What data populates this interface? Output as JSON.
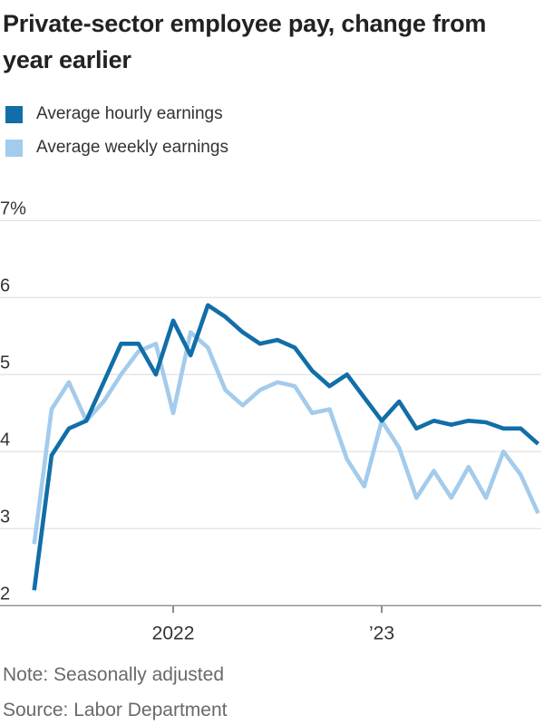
{
  "title": {
    "line1": "Private-sector employee pay, change from",
    "line2": "year earlier"
  },
  "legend": [
    {
      "label": "Average hourly earnings",
      "color": "#116ea8"
    },
    {
      "label": "Average weekly earnings",
      "color": "#a3cbec"
    }
  ],
  "note": "Note: Seasonally adjusted",
  "source": "Source: Labor Department",
  "chart_data": {
    "type": "line",
    "title": "Private-sector employee pay, change from year earlier",
    "x": [
      "May 2021",
      "Jun 2021",
      "Jul 2021",
      "Aug 2021",
      "Sep 2021",
      "Oct 2021",
      "Nov 2021",
      "Dec 2021",
      "Jan 2022",
      "Feb 2022",
      "Mar 2022",
      "Apr 2022",
      "May 2022",
      "Jun 2022",
      "Jul 2022",
      "Aug 2022",
      "Sep 2022",
      "Oct 2022",
      "Nov 2022",
      "Dec 2022",
      "Jan 2023",
      "Feb 2023",
      "Mar 2023",
      "Apr 2023",
      "May 2023",
      "Jun 2023",
      "Jul 2023",
      "Aug 2023",
      "Sep 2023",
      "Oct 2023"
    ],
    "series": [
      {
        "name": "Average hourly earnings",
        "color": "#116ea8",
        "values": [
          2.2,
          3.95,
          4.3,
          4.4,
          4.9,
          5.4,
          5.4,
          5.0,
          5.7,
          5.25,
          5.9,
          5.75,
          5.55,
          5.4,
          5.45,
          5.35,
          5.05,
          4.85,
          5.0,
          4.7,
          4.4,
          4.65,
          4.3,
          4.4,
          4.35,
          4.4,
          4.38,
          4.3,
          4.3,
          4.1
        ]
      },
      {
        "name": "Average weekly earnings",
        "color": "#a3cbec",
        "values": [
          2.8,
          4.55,
          4.9,
          4.4,
          4.65,
          5.0,
          5.3,
          5.4,
          4.5,
          5.55,
          5.35,
          4.8,
          4.6,
          4.8,
          4.9,
          4.85,
          4.5,
          4.55,
          3.9,
          3.55,
          4.4,
          4.05,
          3.4,
          3.75,
          3.4,
          3.8,
          3.4,
          4.0,
          3.7,
          3.2
        ]
      }
    ],
    "ylim": [
      2,
      7
    ],
    "unit": "%",
    "y_ticks": [
      {
        "value": 7,
        "label": "7%"
      },
      {
        "value": 6,
        "label": "6"
      },
      {
        "value": 5,
        "label": "5"
      },
      {
        "value": 4,
        "label": "4"
      },
      {
        "value": 3,
        "label": "3"
      },
      {
        "value": 2,
        "label": "2"
      }
    ],
    "x_ticks": [
      {
        "index": 8,
        "label": "2022"
      },
      {
        "index": 20,
        "label": "’23"
      }
    ],
    "grid": true,
    "legend_position": "top-left"
  }
}
